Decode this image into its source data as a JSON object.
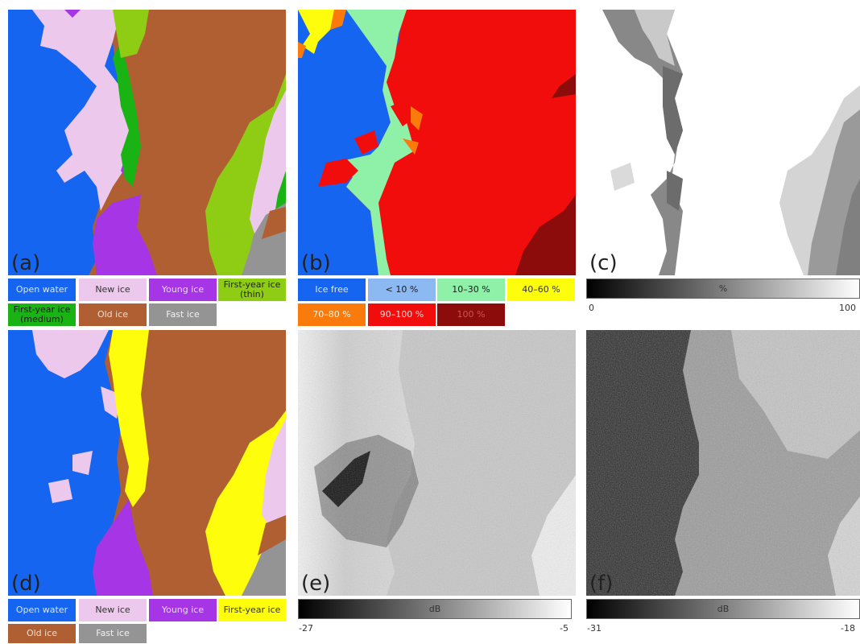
{
  "colors": {
    "open_water": "#1565f0",
    "new_ice": "#ecc9ec",
    "young_ice": "#a635e6",
    "fy_thin": "#8fcc14",
    "fy_medium": "#19b414",
    "old_ice": "#b05f32",
    "fast_ice": "#949494",
    "first_year_ice": "#fdfd0c",
    "ice_free": "#1565f0",
    "lt10": "#8cb9f2",
    "c10_30": "#8ff0a8",
    "c40_60": "#fdfd0c",
    "c70_80": "#fa7a0c",
    "c90_100": "#f20d0d",
    "c100": "#8c0c0c"
  },
  "panels": {
    "a": {
      "label": "(a)"
    },
    "b": {
      "label": "(b)"
    },
    "c": {
      "label": "(c)"
    },
    "d": {
      "label": "(d)"
    },
    "e": {
      "label": "(e)"
    },
    "f": {
      "label": "(f)"
    }
  },
  "legend_a": {
    "open_water": "Open water",
    "new_ice": "New ice",
    "young_ice": "Young ice",
    "fy_thin": "First-year ice (thin)",
    "fy_medium": "First-year ice (medium)",
    "old_ice": "Old ice",
    "fast_ice": "Fast ice"
  },
  "legend_b": {
    "ice_free": "Ice free",
    "lt10": "< 10 %",
    "c10_30": "10–30 %",
    "c40_60": "40–60 %",
    "c70_80": "70–80 %",
    "c90_100": "90–100 %",
    "c100": "100 %"
  },
  "legend_d": {
    "open_water": "Open water",
    "new_ice": "New ice",
    "young_ice": "Young ice",
    "first_year_ice": "First-year ice",
    "old_ice": "Old ice",
    "fast_ice": "Fast ice"
  },
  "colorbar_c": {
    "label": "%",
    "min": "0",
    "max": "100"
  },
  "colorbar_e": {
    "label": "dB",
    "min": "-27",
    "max": "-5"
  },
  "colorbar_f": {
    "label": "dB",
    "min": "-31",
    "max": "-18"
  }
}
